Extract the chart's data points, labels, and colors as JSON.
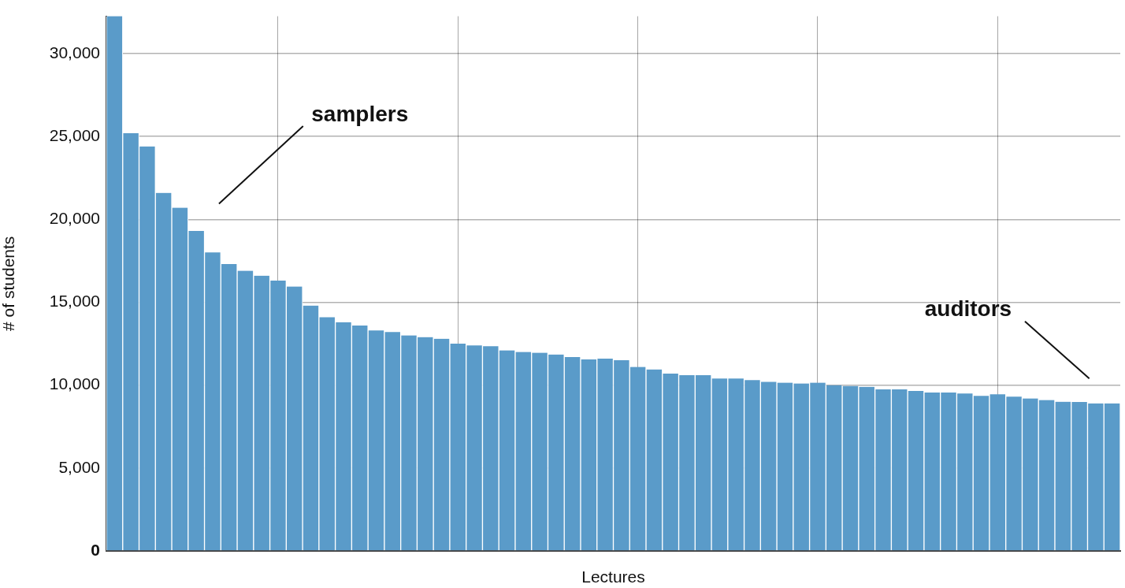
{
  "chart_data": {
    "type": "bar",
    "xlabel": "Lectures",
    "ylabel": "# of students",
    "annotations": [
      "samplers",
      "auditors"
    ],
    "categories": [
      null,
      null,
      null,
      null,
      null,
      null,
      null,
      null,
      null,
      null,
      null,
      null,
      null,
      null,
      null,
      null,
      null,
      null,
      null,
      null,
      null,
      null,
      null,
      null,
      null,
      null,
      null,
      null,
      null,
      null,
      null,
      null,
      null,
      null,
      null,
      null,
      null,
      null,
      null,
      null,
      null,
      null,
      null,
      null,
      null,
      null,
      null,
      null,
      null,
      null,
      null,
      null,
      null,
      null,
      null,
      null,
      null,
      null,
      null,
      null,
      null,
      null
    ],
    "values": [
      32250,
      25200,
      24400,
      21600,
      20700,
      19300,
      18000,
      17300,
      16900,
      16600,
      16300,
      15950,
      14800,
      14100,
      13800,
      13600,
      13300,
      13200,
      13000,
      12900,
      12800,
      12500,
      12400,
      12350,
      12100,
      12000,
      11950,
      11850,
      11700,
      11550,
      11600,
      11500,
      11100,
      10950,
      10700,
      10600,
      10600,
      10400,
      10400,
      10300,
      10200,
      10150,
      10100,
      10150,
      10000,
      9950,
      9900,
      9750,
      9750,
      9650,
      9550,
      9550,
      9500,
      9350,
      9450,
      9300,
      9200,
      9100,
      9000,
      8980,
      8900,
      8900
    ],
    "color": "#5a9bc9",
    "ylim": [
      0,
      32250
    ],
    "yticks": [
      {
        "value": 0,
        "label": "0"
      },
      {
        "value": 5000,
        "label": "5,000"
      },
      {
        "value": 10000,
        "label": "10,000"
      },
      {
        "value": 15000,
        "label": "15,000"
      },
      {
        "value": 20000,
        "label": "20,000"
      },
      {
        "value": 25000,
        "label": "25,000"
      },
      {
        "value": 30000,
        "label": "30,000"
      }
    ],
    "grid": true
  }
}
